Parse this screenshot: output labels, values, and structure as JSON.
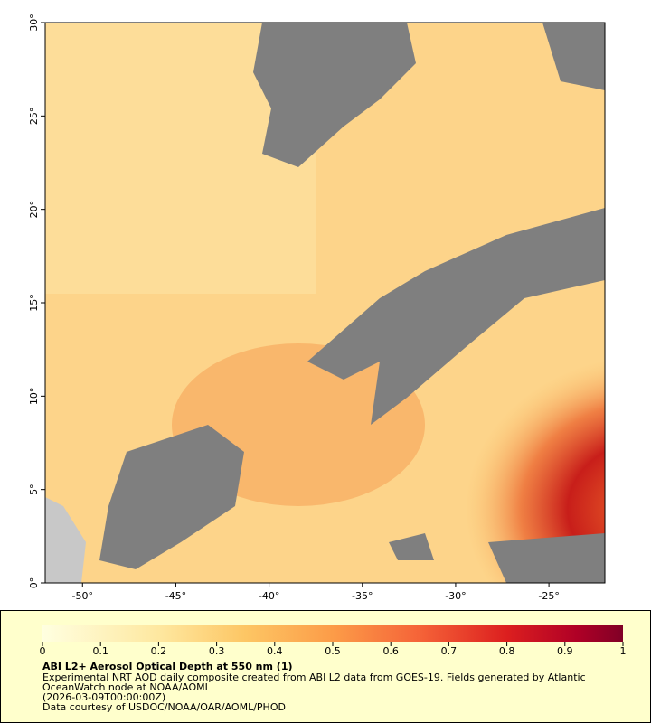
{
  "map": {
    "lat_axis": {
      "range": [
        0,
        30
      ],
      "ticks": [
        {
          "value": 0,
          "label": "0°"
        },
        {
          "value": 5,
          "label": "5°"
        },
        {
          "value": 10,
          "label": "10°"
        },
        {
          "value": 15,
          "label": "15°"
        },
        {
          "value": 20,
          "label": "20°"
        },
        {
          "value": 25,
          "label": "25°"
        },
        {
          "value": 30,
          "label": "30°"
        }
      ]
    },
    "lon_axis": {
      "range": [
        -52,
        -22
      ],
      "ticks": [
        {
          "value": -50,
          "label": "-50°"
        },
        {
          "value": -45,
          "label": "-45°"
        },
        {
          "value": -40,
          "label": "-40°"
        },
        {
          "value": -35,
          "label": "-35°"
        },
        {
          "value": -30,
          "label": "-30°"
        },
        {
          "value": -25,
          "label": "-25°"
        }
      ]
    }
  },
  "legend": {
    "colorbar": {
      "range": [
        0,
        1
      ],
      "ticks": [
        0,
        0.1,
        0.2,
        0.3,
        0.4,
        0.5,
        0.6,
        0.7,
        0.8,
        0.9,
        1
      ]
    },
    "title": "ABI L2+ Aerosol Optical Depth at 550 nm (1)",
    "description": [
      "Experimental NRT AOD daily composite created from ABI L2 data from GOES-19. Fields generated by Atlantic",
      "OceanWatch node at NOAA/AOML",
      "(2026-03-09T00:00:00Z)",
      "Data courtesy of USDOC/NOAA/OAR/AOML/PHOD"
    ]
  }
}
